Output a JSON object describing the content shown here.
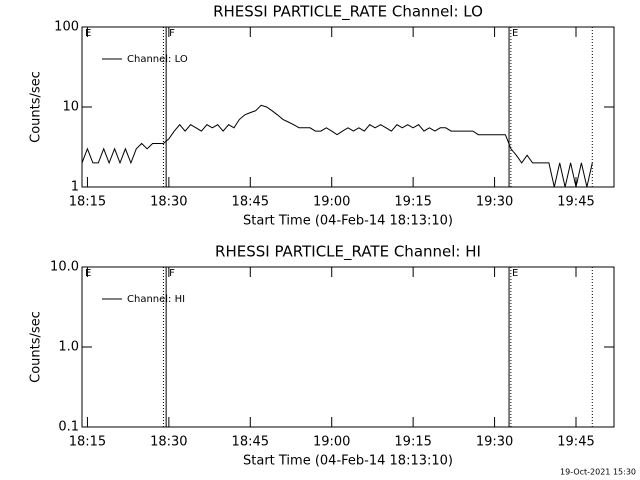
{
  "chart_data": [
    {
      "type": "line",
      "title": "RHESSI PARTICLE_RATE Channel: LO",
      "xlabel": "Start Time (04-Feb-14 18:13:10)",
      "ylabel": "Counts/sec",
      "log_y": true,
      "ylim": [
        1,
        100
      ],
      "yticks": [
        1,
        10,
        100
      ],
      "xlim": [
        "18:14",
        "19:52"
      ],
      "xticks": [
        "18:15",
        "18:30",
        "18:45",
        "19:00",
        "19:15",
        "19:30",
        "19:45"
      ],
      "legend": "upper left",
      "flags": [
        {
          "x": "18:14",
          "label": "E"
        },
        {
          "x": "18:29:30",
          "label": "F"
        },
        {
          "x": "19:32:40",
          "label": "E"
        },
        {
          "x": "18:29",
          "dotted": true
        },
        {
          "x": "19:33",
          "dotted": true
        },
        {
          "x": "19:48",
          "dotted": true
        }
      ],
      "series": [
        {
          "name": "Channel: LO",
          "color": "#000000",
          "x": [
            "18:14",
            "18:15",
            "18:16",
            "18:17",
            "18:18",
            "18:19",
            "18:20",
            "18:21",
            "18:22",
            "18:23",
            "18:24",
            "18:25",
            "18:26",
            "18:27",
            "18:28",
            "18:29",
            "18:30",
            "18:31",
            "18:32",
            "18:33",
            "18:34",
            "18:35",
            "18:36",
            "18:37",
            "18:38",
            "18:39",
            "18:40",
            "18:41",
            "18:42",
            "18:43",
            "18:44",
            "18:45",
            "18:46",
            "18:47",
            "18:48",
            "18:49",
            "18:50",
            "18:51",
            "18:52",
            "18:53",
            "18:54",
            "18:55",
            "18:56",
            "18:57",
            "18:58",
            "18:59",
            "19:00",
            "19:01",
            "19:02",
            "19:03",
            "19:04",
            "19:05",
            "19:06",
            "19:07",
            "19:08",
            "19:09",
            "19:10",
            "19:11",
            "19:12",
            "19:13",
            "19:14",
            "19:15",
            "19:16",
            "19:17",
            "19:18",
            "19:19",
            "19:20",
            "19:21",
            "19:22",
            "19:23",
            "19:24",
            "19:25",
            "19:26",
            "19:27",
            "19:28",
            "19:29",
            "19:30",
            "19:31",
            "19:32",
            "19:33",
            "19:34",
            "19:35",
            "19:36",
            "19:37",
            "19:38",
            "19:39",
            "19:40",
            "19:41",
            "19:42",
            "19:43",
            "19:44",
            "19:45",
            "19:46",
            "19:47",
            "19:48"
          ],
          "values": [
            2,
            3,
            2,
            2,
            3,
            2,
            3,
            2,
            3,
            2,
            3,
            3.5,
            3,
            3.5,
            3.5,
            3.5,
            4,
            5,
            6,
            5,
            6,
            5.5,
            5,
            6,
            5.5,
            6,
            5,
            6,
            5.5,
            7,
            8,
            8.5,
            9,
            10.5,
            10,
            9,
            8,
            7,
            6.5,
            6,
            5.5,
            5.5,
            5.5,
            5,
            5,
            5.5,
            5,
            4.5,
            5,
            5.5,
            5,
            5.5,
            5,
            6,
            5.5,
            6,
            5.5,
            5,
            6,
            5.5,
            6,
            5.5,
            6,
            5,
            5.5,
            5,
            5.5,
            5.5,
            5,
            5,
            5,
            5,
            5,
            4.5,
            4.5,
            4.5,
            4.5,
            4.5,
            4.5,
            3,
            2.5,
            2,
            2.5,
            2,
            2,
            2,
            2,
            1,
            2,
            1,
            2,
            1,
            2,
            1,
            2
          ]
        }
      ]
    },
    {
      "type": "line",
      "title": "RHESSI PARTICLE_RATE Channel: HI",
      "xlabel": "Start Time (04-Feb-14 18:13:10)",
      "ylabel": "Counts/sec",
      "log_y": true,
      "ylim": [
        0.1,
        10
      ],
      "yticks": [
        0.1,
        {
          "value": 1,
          "label": "1.0"
        },
        {
          "value": 10,
          "label": "10.0"
        }
      ],
      "xlim": [
        "18:14",
        "19:52"
      ],
      "xticks": [
        "18:15",
        "18:30",
        "18:45",
        "19:00",
        "19:15",
        "19:30",
        "19:45"
      ],
      "legend": "upper left",
      "flags": [
        {
          "x": "18:14",
          "label": "E"
        },
        {
          "x": "18:29:30",
          "label": "F"
        },
        {
          "x": "19:32:40",
          "label": "E"
        },
        {
          "x": "18:29",
          "dotted": true
        },
        {
          "x": "19:33",
          "dotted": true
        },
        {
          "x": "19:48",
          "dotted": true
        }
      ],
      "series": [
        {
          "name": "Channel: HI",
          "color": "#000000",
          "x": [],
          "values": []
        }
      ]
    }
  ],
  "footer": "19-Oct-2021 15:30"
}
